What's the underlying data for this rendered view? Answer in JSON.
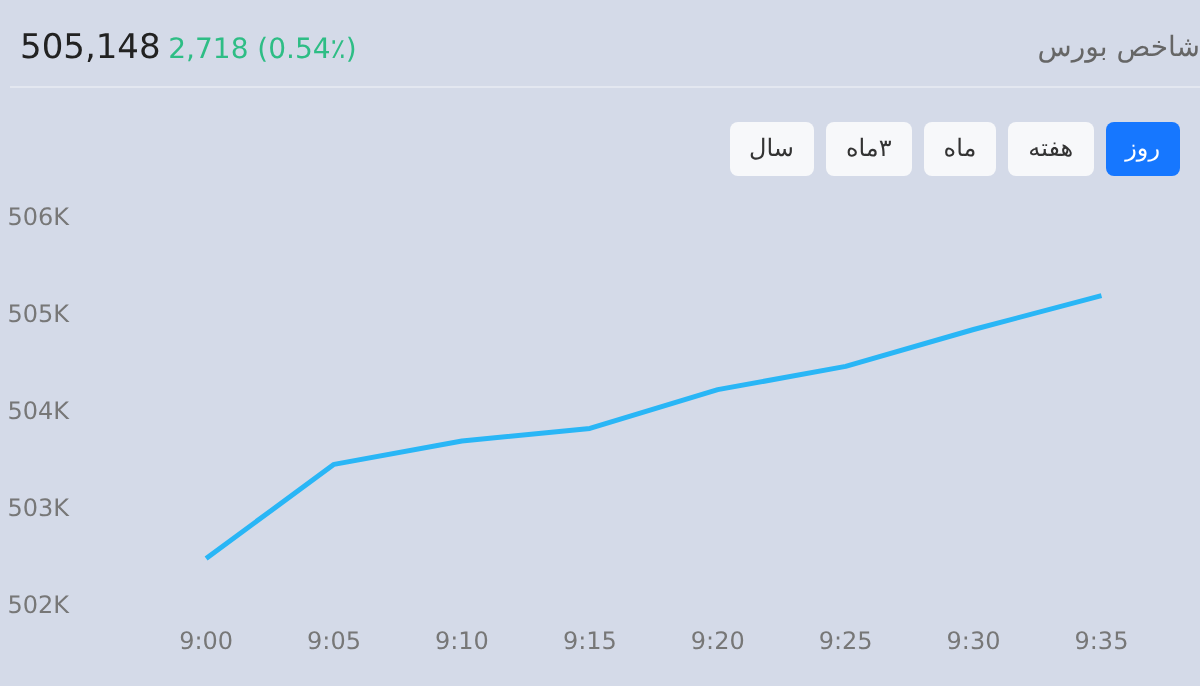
{
  "chart_data": {
    "type": "line",
    "title": "شاخص بورس",
    "subtitle": "505,148",
    "annotations": [
      "2,718 (0.54٪)",
      "روز",
      "هفته",
      "ماه",
      "۳ماه",
      "سال"
    ],
    "categories": [
      "9:00",
      "9:05",
      "9:10",
      "9:15",
      "9:20",
      "9:25",
      "9:30",
      "9:35"
    ],
    "series": [
      {
        "color": "#29b6f6",
        "values": [
          502480,
          503450,
          503690,
          503820,
          504220,
          504460,
          504840,
          505190
        ]
      }
    ],
    "ylim": [
      502000,
      506000
    ],
    "yticks": [
      {
        "value": 502000,
        "label": "502K"
      },
      {
        "value": 503000,
        "label": "503K"
      },
      {
        "value": 504000,
        "label": "504K"
      },
      {
        "value": 505000,
        "label": "505K"
      },
      {
        "value": 506000,
        "label": "506K"
      }
    ],
    "grid": false,
    "marker": "none",
    "line_style": "solid"
  }
}
